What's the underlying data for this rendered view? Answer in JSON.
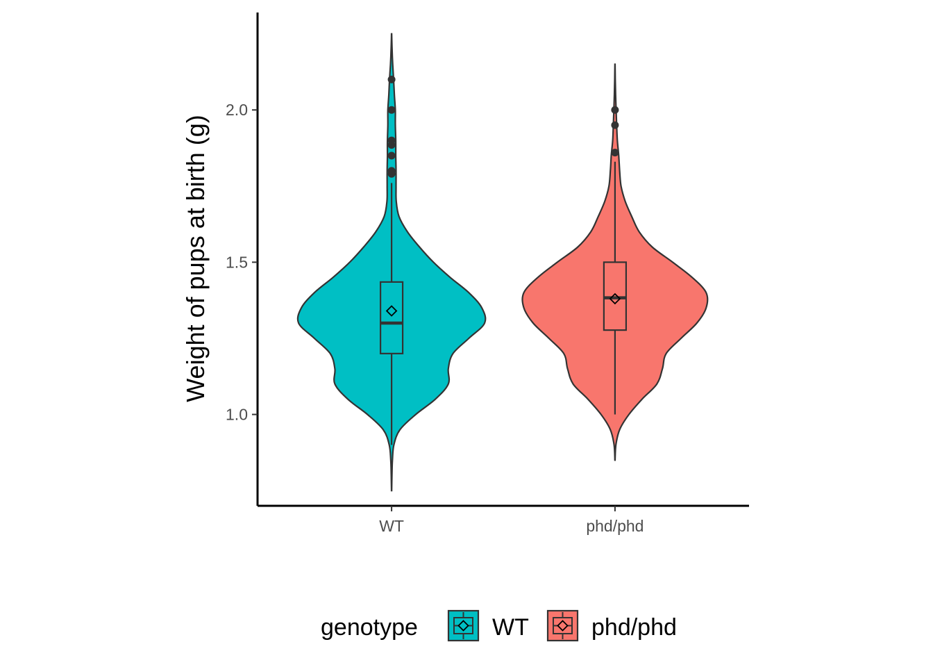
{
  "chart_data": {
    "type": "violin",
    "title": "",
    "xlabel": "",
    "ylabel": "Weight of pups at birth (g)",
    "ylim": [
      0.7,
      2.32
    ],
    "y_ticks": [
      {
        "value": 1.0,
        "label": "1.0"
      },
      {
        "value": 1.5,
        "label": "1.5"
      },
      {
        "value": 2.0,
        "label": "2.0"
      }
    ],
    "grid": false,
    "legend": {
      "title": "genotype",
      "position": "bottom",
      "entries": [
        {
          "label": "WT",
          "color": "#00BFC4"
        },
        {
          "label": "phd/phd",
          "color": "#F8766D"
        }
      ]
    },
    "categories": [
      "WT",
      "phd/phd"
    ],
    "series": [
      {
        "name": "WT",
        "color": "#00BFC4",
        "violin_range": [
          0.75,
          2.25
        ],
        "density": [
          [
            0.75,
            0.001
          ],
          [
            0.8,
            0.004
          ],
          [
            0.85,
            0.009
          ],
          [
            0.9,
            0.025
          ],
          [
            0.95,
            0.09
          ],
          [
            1.0,
            0.26
          ],
          [
            1.05,
            0.47
          ],
          [
            1.1,
            0.61
          ],
          [
            1.15,
            0.61
          ],
          [
            1.2,
            0.66
          ],
          [
            1.25,
            0.83
          ],
          [
            1.3,
            1.0
          ],
          [
            1.35,
            0.97
          ],
          [
            1.4,
            0.83
          ],
          [
            1.45,
            0.63
          ],
          [
            1.5,
            0.45
          ],
          [
            1.55,
            0.3
          ],
          [
            1.6,
            0.17
          ],
          [
            1.65,
            0.08
          ],
          [
            1.7,
            0.05
          ],
          [
            1.75,
            0.048
          ],
          [
            1.8,
            0.048
          ],
          [
            1.85,
            0.045
          ],
          [
            1.9,
            0.045
          ],
          [
            1.95,
            0.04
          ],
          [
            2.0,
            0.04
          ],
          [
            2.05,
            0.03
          ],
          [
            2.1,
            0.022
          ],
          [
            2.15,
            0.012
          ],
          [
            2.2,
            0.005
          ],
          [
            2.25,
            0.001
          ]
        ],
        "whisker_low": 0.9,
        "q1": 1.2,
        "median": 1.3,
        "q3": 1.435,
        "whisker_high": 1.76,
        "mean": 1.34,
        "outliers": [
          1.79,
          1.8,
          1.85,
          1.885,
          1.9,
          2.0,
          2.1
        ]
      },
      {
        "name": "phd/phd",
        "color": "#F8766D",
        "violin_range": [
          0.85,
          2.15
        ],
        "density": [
          [
            0.85,
            0.001
          ],
          [
            0.9,
            0.01
          ],
          [
            0.95,
            0.05
          ],
          [
            1.0,
            0.15
          ],
          [
            1.05,
            0.29
          ],
          [
            1.1,
            0.45
          ],
          [
            1.15,
            0.51
          ],
          [
            1.2,
            0.55
          ],
          [
            1.25,
            0.71
          ],
          [
            1.3,
            0.88
          ],
          [
            1.35,
            0.98
          ],
          [
            1.4,
            0.98
          ],
          [
            1.45,
            0.83
          ],
          [
            1.5,
            0.62
          ],
          [
            1.55,
            0.4
          ],
          [
            1.6,
            0.26
          ],
          [
            1.65,
            0.18
          ],
          [
            1.7,
            0.11
          ],
          [
            1.75,
            0.065
          ],
          [
            1.8,
            0.05
          ],
          [
            1.85,
            0.04
          ],
          [
            1.9,
            0.025
          ],
          [
            1.95,
            0.018
          ],
          [
            2.0,
            0.012
          ],
          [
            2.05,
            0.007
          ],
          [
            2.1,
            0.003
          ],
          [
            2.15,
            0.001
          ]
        ],
        "whisker_low": 1.0,
        "q1": 1.277,
        "median": 1.383,
        "q3": 1.5,
        "whisker_high": 1.83,
        "mean": 1.38,
        "outliers": [
          1.86,
          1.95,
          2.0
        ]
      }
    ]
  }
}
